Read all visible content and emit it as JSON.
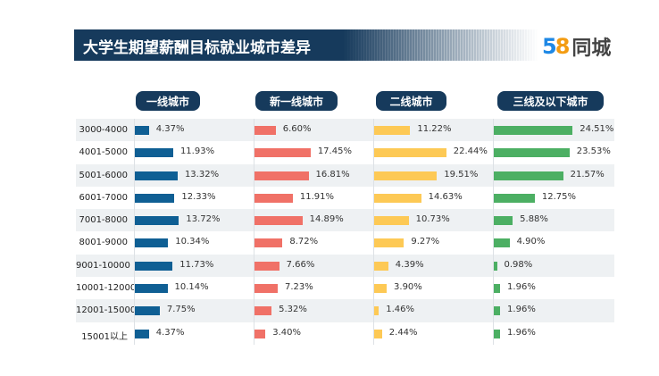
{
  "chart_data": {
    "type": "bar",
    "title": "大学生期望薪酬目标就业城市差异",
    "unit": "%",
    "categories": [
      "3000-4000",
      "4001-5000",
      "5001-6000",
      "6001-7000",
      "7001-8000",
      "8001-9000",
      "9001-10000",
      "10001-12000",
      "12001-15000",
      "15001以上"
    ],
    "series": [
      {
        "name": "一线城市",
        "color": "#0f5f94",
        "values": [
          4.37,
          11.93,
          13.32,
          12.33,
          13.72,
          10.34,
          11.73,
          10.14,
          7.75,
          4.37
        ]
      },
      {
        "name": "新一线城市",
        "color": "#f07167",
        "values": [
          6.6,
          17.45,
          16.81,
          11.91,
          14.89,
          8.72,
          7.66,
          7.23,
          5.32,
          3.4
        ]
      },
      {
        "name": "二线城市",
        "color": "#fdc955",
        "values": [
          11.22,
          22.44,
          19.51,
          14.63,
          10.73,
          9.27,
          4.39,
          3.9,
          1.46,
          2.44
        ]
      },
      {
        "name": "三线及以下城市",
        "color": "#4caf63",
        "values": [
          24.51,
          23.53,
          21.57,
          12.75,
          5.88,
          4.9,
          0.98,
          1.96,
          1.96,
          1.96
        ]
      }
    ]
  },
  "logo": {
    "num5": "5",
    "num8": "8",
    "text": "同城"
  }
}
